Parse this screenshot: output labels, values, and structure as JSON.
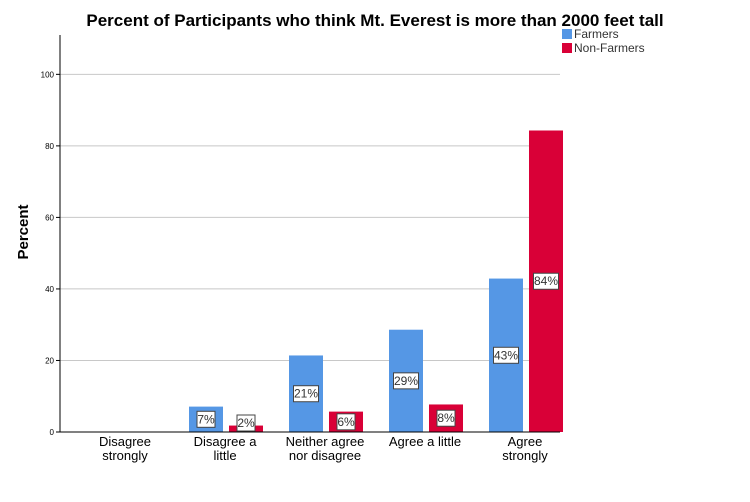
{
  "chart_data": {
    "type": "bar",
    "title": "Percent of Participants who think Mt. Everest is more than 2000 feet tall",
    "xlabel": "",
    "ylabel": "Percent",
    "ylim": [
      0,
      111
    ],
    "yticks": [
      0,
      20,
      40,
      60,
      80,
      100
    ],
    "grid": true,
    "legend_position": "top-right",
    "categories": [
      [
        "Disagree",
        "strongly"
      ],
      [
        "Disagree a",
        "little"
      ],
      [
        "Neither agree",
        "nor disagree"
      ],
      [
        "Agree a little"
      ],
      [
        "Agree",
        "strongly"
      ]
    ],
    "series": [
      {
        "name": "Farmers",
        "color": "#5597e5",
        "values": [
          0,
          7.1,
          21.4,
          28.6,
          42.9
        ],
        "labels": [
          "",
          "7%",
          "21%",
          "29%",
          "43%"
        ]
      },
      {
        "name": "Non-Farmers",
        "color": "#d90037",
        "values": [
          0,
          1.8,
          5.7,
          7.7,
          84.3
        ],
        "labels": [
          "",
          "2%",
          "6%",
          "8%",
          "84%"
        ]
      }
    ]
  }
}
